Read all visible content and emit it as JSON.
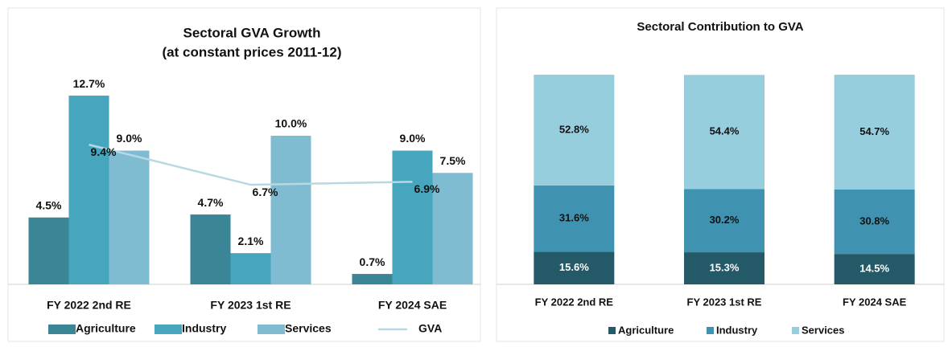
{
  "chart_data": [
    {
      "type": "bar",
      "title": "Sectoral GVA Growth",
      "subtitle": "(at constant prices 2011-12)",
      "categories": [
        "FY 2022 2nd RE",
        "FY 2023 1st RE",
        "FY 2024 SAE"
      ],
      "ylim": [
        0,
        14
      ],
      "series": [
        {
          "name": "Agriculture",
          "color": "#3a8696",
          "values": [
            4.5,
            4.7,
            0.7
          ],
          "value_labels": [
            "4.5%",
            "4.7%",
            "0.7%"
          ]
        },
        {
          "name": "Industry",
          "color": "#46a6bd",
          "values": [
            12.7,
            2.1,
            9.0
          ],
          "value_labels": [
            "12.7%",
            "2.1%",
            "9.0%"
          ]
        },
        {
          "name": "Services",
          "color": "#7fbcd2",
          "values": [
            9.0,
            10.0,
            7.5
          ],
          "value_labels": [
            "9.0%",
            "10.0%",
            "7.5%"
          ]
        },
        {
          "name": "GVA",
          "type": "line",
          "color": "#b7d8e2",
          "values": [
            9.4,
            6.7,
            6.9
          ],
          "value_labels": [
            "9.4%",
            "6.7%",
            "6.9%"
          ]
        }
      ]
    },
    {
      "type": "stacked_bar",
      "title": "Sectoral Contribution to GVA",
      "categories": [
        "FY 2022 2nd RE",
        "FY 2023 1st RE",
        "FY 2024 SAE"
      ],
      "ylim": [
        0,
        100
      ],
      "series": [
        {
          "name": "Agriculture",
          "color": "#245a68",
          "label_color": "#ffffff",
          "values": [
            15.6,
            15.3,
            14.5
          ],
          "value_labels": [
            "15.6%",
            "15.3%",
            "14.5%"
          ]
        },
        {
          "name": "Industry",
          "color": "#3f93b0",
          "label_color": "#111111",
          "values": [
            31.6,
            30.2,
            30.8
          ],
          "value_labels": [
            "31.6%",
            "30.2%",
            "30.8%"
          ]
        },
        {
          "name": "Services",
          "color": "#96cede",
          "label_color": "#111111",
          "values": [
            52.8,
            54.4,
            54.7
          ],
          "value_labels": [
            "52.8%",
            "54.4%",
            "54.7%"
          ]
        }
      ]
    }
  ]
}
